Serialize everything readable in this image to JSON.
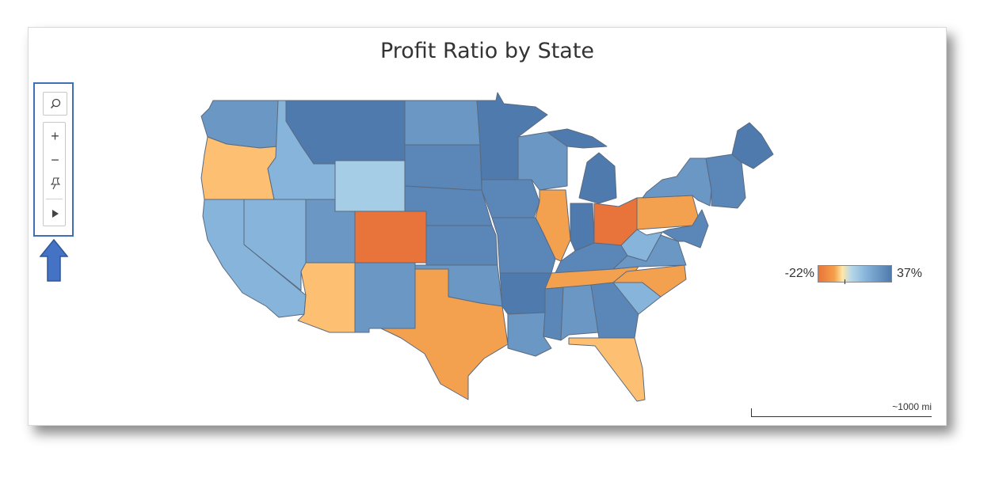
{
  "title": "Profit Ratio by State",
  "toolbar": {
    "items": [
      "search-icon",
      "zoom-in-icon",
      "zoom-out-icon",
      "pin-icon",
      "expand-arrow-icon"
    ],
    "zoom_in": "+",
    "zoom_out": "−"
  },
  "legend": {
    "min": "-22%",
    "max": "37%"
  },
  "scale": {
    "label": "~1000 mi"
  },
  "colors": {
    "negative_strong": "#e8743b",
    "negative": "#f4a14f",
    "negative_light": "#fdbf72",
    "neutral_light": "#a6cde6",
    "positive_light": "#86b4da",
    "positive": "#6b97c4",
    "positive_strong": "#4f7aad",
    "highlight_border": "#3f6fb5",
    "arrow": "#4472c4"
  },
  "states": [
    {
      "name": "WA",
      "color": "#6b97c4"
    },
    {
      "name": "OR",
      "color": "#fdbf72"
    },
    {
      "name": "CA",
      "color": "#86b4da"
    },
    {
      "name": "NV",
      "color": "#86b4da"
    },
    {
      "name": "ID",
      "color": "#86b4da"
    },
    {
      "name": "MT",
      "color": "#4f7aad"
    },
    {
      "name": "WY",
      "color": "#a6cde6"
    },
    {
      "name": "UT",
      "color": "#6b97c4"
    },
    {
      "name": "AZ",
      "color": "#fdbf72"
    },
    {
      "name": "CO",
      "color": "#e8743b"
    },
    {
      "name": "NM",
      "color": "#6b97c4"
    },
    {
      "name": "ND",
      "color": "#6b97c4"
    },
    {
      "name": "SD",
      "color": "#5a86b8"
    },
    {
      "name": "NE",
      "color": "#5a86b8"
    },
    {
      "name": "KS",
      "color": "#5a86b8"
    },
    {
      "name": "OK",
      "color": "#6b97c4"
    },
    {
      "name": "TX",
      "color": "#f4a14f"
    },
    {
      "name": "MN",
      "color": "#4f7aad"
    },
    {
      "name": "IA",
      "color": "#5a86b8"
    },
    {
      "name": "MO",
      "color": "#5a86b8"
    },
    {
      "name": "AR",
      "color": "#4f7aad"
    },
    {
      "name": "LA",
      "color": "#6b97c4"
    },
    {
      "name": "WI",
      "color": "#6b97c4"
    },
    {
      "name": "IL",
      "color": "#f4a14f"
    },
    {
      "name": "MI",
      "color": "#4f7aad"
    },
    {
      "name": "IN",
      "color": "#4f7aad"
    },
    {
      "name": "OH",
      "color": "#e8743b"
    },
    {
      "name": "KY",
      "color": "#5a86b8"
    },
    {
      "name": "TN",
      "color": "#f4a14f"
    },
    {
      "name": "MS",
      "color": "#5a86b8"
    },
    {
      "name": "AL",
      "color": "#6b97c4"
    },
    {
      "name": "GA",
      "color": "#5a86b8"
    },
    {
      "name": "FL",
      "color": "#fdbf72"
    },
    {
      "name": "SC",
      "color": "#86b4da"
    },
    {
      "name": "NC",
      "color": "#f4a14f"
    },
    {
      "name": "VA",
      "color": "#6b97c4"
    },
    {
      "name": "WV",
      "color": "#86b4da"
    },
    {
      "name": "PA",
      "color": "#f4a14f"
    },
    {
      "name": "NY",
      "color": "#6b97c4"
    },
    {
      "name": "ME",
      "color": "#4f7aad"
    },
    {
      "name": "NE-states",
      "color": "#5a86b8"
    },
    {
      "name": "NJ-MD-DE",
      "color": "#5a86b8"
    }
  ]
}
